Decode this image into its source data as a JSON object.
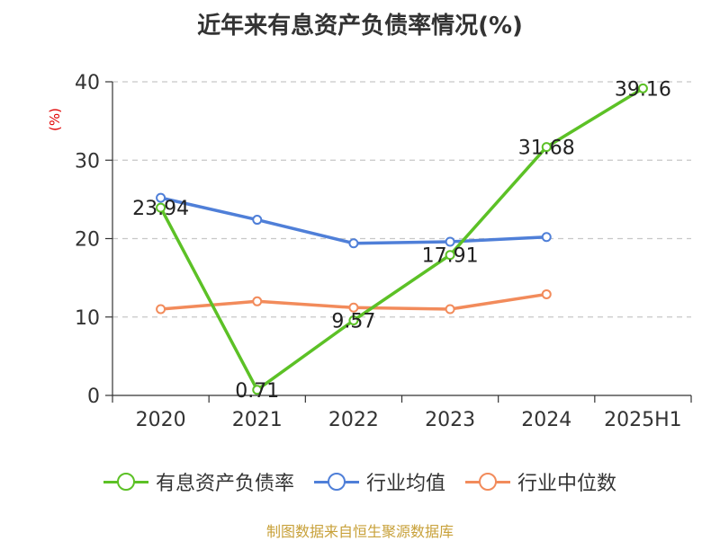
{
  "chart_data": {
    "type": "line",
    "title": "近年来有息资产负债率情况(%)",
    "ylabel": "(%)",
    "categories": [
      "2020",
      "2021",
      "2022",
      "2023",
      "2024",
      "2025H1"
    ],
    "ylim": [
      0,
      40
    ],
    "yticks": [
      0,
      10,
      20,
      30,
      40
    ],
    "grid": true,
    "legend_position": "bottom",
    "series": [
      {
        "name": "有息资产负债率",
        "color": "#5cc126",
        "values": [
          23.94,
          0.71,
          9.57,
          17.91,
          31.68,
          39.16
        ],
        "labels": [
          "23.94",
          "0.71",
          "9.57",
          "17.91",
          "31.68",
          "39.16"
        ]
      },
      {
        "name": "行业均值",
        "color": "#4f7fd8",
        "values": [
          25.2,
          22.4,
          19.4,
          19.6,
          20.2,
          null
        ]
      },
      {
        "name": "行业中位数",
        "color": "#f28b5b",
        "values": [
          11.0,
          12.0,
          11.2,
          11.0,
          12.9,
          null
        ]
      }
    ]
  },
  "source": "制图数据来自恒生聚源数据库"
}
